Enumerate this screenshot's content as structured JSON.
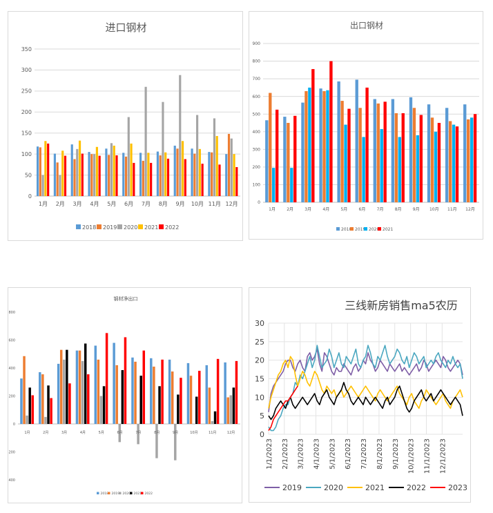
{
  "chart_data": [
    {
      "type": "bar",
      "title": "进口钢材",
      "categories": [
        "1月",
        "2月",
        "3月",
        "4月",
        "5月",
        "6月",
        "7月",
        "8月",
        "9月",
        "10月",
        "11月",
        "12月"
      ],
      "ylim": [
        0,
        350
      ],
      "yticks": [
        "0",
        "50",
        "100",
        "150",
        "200",
        "250",
        "300",
        "350"
      ],
      "grid": true,
      "legend": "bottom",
      "series": [
        {
          "name": "2018",
          "color": "#5b9bd5",
          "values": [
            118,
            101,
            123,
            105,
            113,
            103,
            103,
            106,
            120,
            113,
            105,
            100
          ]
        },
        {
          "name": "2019",
          "color": "#ed7d31",
          "values": [
            116,
            80,
            88,
            100,
            98,
            94,
            84,
            97,
            113,
            101,
            104,
            148
          ]
        },
        {
          "name": "2020",
          "color": "#a5a5a5",
          "values": [
            50,
            50,
            112,
            100,
            126,
            188,
            260,
            224,
            288,
            193,
            185,
            137
          ]
        },
        {
          "name": "2021",
          "color": "#ffc000",
          "values": [
            131,
            108,
            132,
            117,
            120,
            125,
            103,
            104,
            131,
            112,
            143,
            100
          ]
        },
        {
          "name": "2022",
          "color": "#ff0000",
          "values": [
            125,
            96,
            101,
            96,
            97,
            79,
            79,
            89,
            88,
            77,
            75,
            69
          ]
        }
      ]
    },
    {
      "type": "bar",
      "title": "出口钢材",
      "categories": [
        "1月",
        "2月",
        "3月",
        "4月",
        "5月",
        "6月",
        "7月",
        "8月",
        "9月",
        "10月",
        "11月",
        "12月"
      ],
      "ylim": [
        0,
        900
      ],
      "yticks": [
        "0",
        "100",
        "200",
        "300",
        "400",
        "500",
        "600",
        "700",
        "800",
        "900"
      ],
      "grid": true,
      "legend": "bottom",
      "series": [
        {
          "name": "2018",
          "color": "#5b9bd5",
          "values": [
            465,
            485,
            565,
            645,
            685,
            695,
            585,
            585,
            595,
            555,
            535,
            555
          ]
        },
        {
          "name": "2019",
          "color": "#ed7d31",
          "values": [
            620,
            450,
            630,
            630,
            575,
            535,
            560,
            505,
            535,
            480,
            460,
            470
          ]
        },
        {
          "name": "2020",
          "color": "#00b0f0",
          "values": [
            195,
            195,
            650,
            635,
            440,
            370,
            415,
            370,
            380,
            400,
            440,
            480
          ]
        },
        {
          "name": "2021",
          "color": "#ff0000",
          "values": [
            525,
            490,
            755,
            800,
            530,
            650,
            570,
            505,
            495,
            450,
            430,
            500
          ]
        }
      ]
    },
    {
      "type": "bar",
      "title": "钢材净出口",
      "categories": [
        "1月",
        "2月",
        "3月",
        "4月",
        "5月",
        "6月",
        "7月",
        "8月",
        "9月",
        "10月",
        "11月",
        "12月"
      ],
      "ylim": [
        -400,
        800
      ],
      "yticks": [
        "-400",
        "-200",
        "0",
        "200",
        "400",
        "600",
        "800"
      ],
      "grid": false,
      "legend": "bottom",
      "series": [
        {
          "name": "2018",
          "color": "#5b9bd5",
          "values": [
            325,
            370,
            430,
            525,
            560,
            580,
            475,
            470,
            460,
            435,
            420,
            440
          ]
        },
        {
          "name": "2019",
          "color": "#ed7d31",
          "values": [
            485,
            355,
            530,
            525,
            460,
            420,
            445,
            410,
            375,
            345,
            260,
            190
          ]
        },
        {
          "name": "2020",
          "color": "#a5a5a5",
          "values": [
            60,
            50,
            460,
            450,
            200,
            -130,
            -145,
            -245,
            -260,
            0,
            20,
            205
          ]
        },
        {
          "name": "2021",
          "color": "#000000",
          "values": [
            260,
            275,
            530,
            575,
            270,
            385,
            345,
            270,
            210,
            195,
            90,
            260
          ]
        },
        {
          "name": "2022",
          "color": "#ff0000",
          "values": [
            205,
            185,
            290,
            355,
            650,
            620,
            525,
            460,
            330,
            380,
            465,
            450
          ]
        }
      ]
    },
    {
      "type": "line",
      "title": "三线新房销售ma5农历",
      "x_labels": [
        "1/1/2023",
        "2/1/2023",
        "3/1/2023",
        "4/1/2023",
        "5/1/2023",
        "6/1/2023",
        "7/1/2023",
        "8/1/2023",
        "9/1/2023",
        "10/1/2023",
        "11/1/2023",
        "12/1/2023"
      ],
      "ylim": [
        0,
        30
      ],
      "yticks": [
        "0",
        "5",
        "10",
        "15",
        "20",
        "25",
        "30"
      ],
      "grid": true,
      "legend": "bottom",
      "series": [
        {
          "name": "2019",
          "color": "#7e5ea6",
          "values": [
            6,
            11,
            13,
            14,
            15,
            16,
            17,
            19,
            20,
            20,
            18,
            17,
            19,
            20,
            18,
            17,
            21,
            22,
            20,
            21,
            23,
            19,
            17,
            22,
            21,
            19,
            17,
            16,
            18,
            17,
            17,
            19,
            18,
            17,
            16,
            18,
            19,
            17,
            18,
            20,
            19,
            22,
            20,
            19,
            17,
            18,
            20,
            19,
            18,
            17,
            19,
            18,
            17,
            18,
            19,
            17,
            18,
            17,
            16,
            17,
            18,
            19,
            17,
            18,
            20,
            19,
            17,
            18,
            19,
            20,
            19,
            18,
            21,
            20,
            18,
            17,
            18,
            19,
            20,
            19,
            16
          ]
        },
        {
          "name": "2020",
          "color": "#4aa7c0",
          "values": [
            2,
            1,
            1,
            2,
            4,
            5,
            7,
            8,
            8,
            10,
            11,
            14,
            13,
            16,
            15,
            17,
            19,
            21,
            18,
            20,
            24,
            21,
            18,
            19,
            20,
            23,
            21,
            18,
            20,
            22,
            19,
            18,
            21,
            20,
            19,
            21,
            23,
            19,
            18,
            20,
            21,
            24,
            22,
            19,
            18,
            21,
            20,
            22,
            24,
            21,
            19,
            20,
            21,
            23,
            22,
            20,
            19,
            21,
            18,
            20,
            22,
            21,
            19,
            20,
            21,
            18,
            19,
            20,
            19,
            21,
            22,
            20,
            19,
            18,
            20,
            19,
            21,
            19,
            18,
            19,
            15
          ]
        },
        {
          "name": "2021",
          "color": "#ffc000",
          "values": [
            7,
            10,
            12,
            14,
            16,
            17,
            19,
            20,
            18,
            21,
            20,
            16,
            13,
            15,
            17,
            16,
            14,
            13,
            15,
            17,
            16,
            14,
            12,
            11,
            13,
            12,
            11,
            12,
            10,
            11,
            12,
            10,
            11,
            12,
            13,
            12,
            11,
            10,
            11,
            12,
            13,
            12,
            11,
            10,
            9,
            11,
            12,
            11,
            10,
            9,
            10,
            11,
            12,
            13,
            11,
            10,
            9,
            8,
            10,
            11,
            9,
            8,
            7,
            9,
            10,
            12,
            11,
            10,
            9,
            8,
            9,
            10,
            11,
            9,
            8,
            7,
            9,
            10,
            11,
            12,
            10
          ]
        },
        {
          "name": "2022",
          "color": "#000000",
          "values": [
            5,
            4,
            5,
            7,
            8,
            9,
            8,
            7,
            9,
            10,
            8,
            7,
            8,
            9,
            10,
            9,
            8,
            9,
            10,
            11,
            9,
            8,
            10,
            11,
            12,
            10,
            9,
            8,
            10,
            11,
            12,
            14,
            12,
            11,
            9,
            8,
            9,
            10,
            9,
            8,
            10,
            9,
            8,
            9,
            10,
            9,
            8,
            7,
            9,
            10,
            8,
            9,
            10,
            12,
            13,
            11,
            9,
            7,
            6,
            7,
            9,
            10,
            11,
            12,
            10,
            9,
            10,
            11,
            9,
            10,
            11,
            12,
            11,
            10,
            9,
            8,
            9,
            10,
            9,
            8,
            5
          ]
        },
        {
          "name": "2023",
          "color": "#ff0000",
          "values": [
            1,
            2,
            4,
            5,
            6,
            7,
            8,
            9,
            9,
            10,
            11,
            12,
            13
          ]
        }
      ]
    }
  ]
}
